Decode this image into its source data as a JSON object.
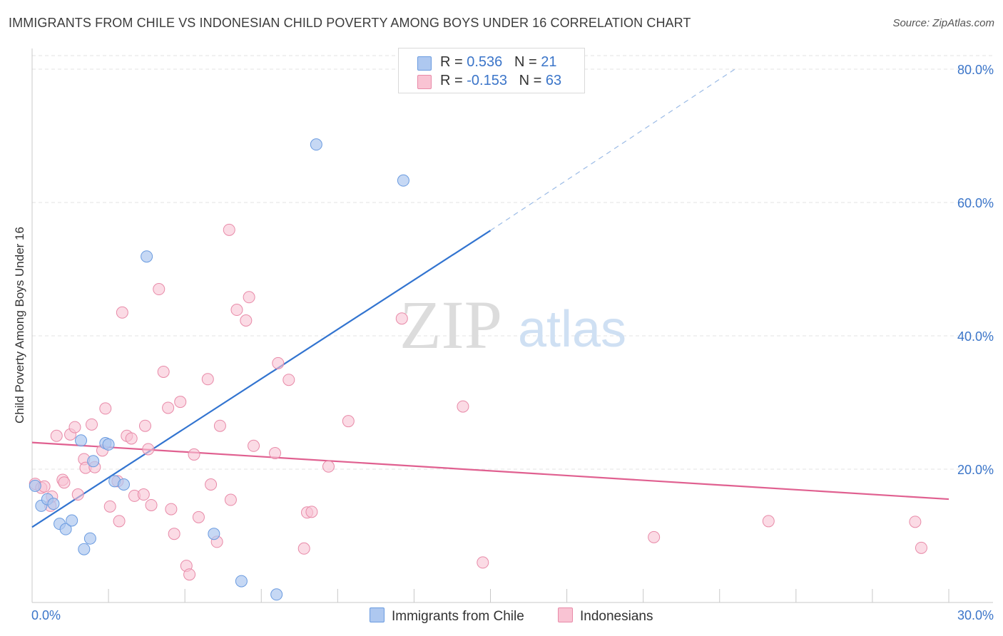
{
  "title": "IMMIGRANTS FROM CHILE VS INDONESIAN CHILD POVERTY AMONG BOYS UNDER 16 CORRELATION CHART",
  "source": "Source: ZipAtlas.com",
  "watermark": {
    "zip": "ZIP",
    "atlas": "atlas"
  },
  "legend_top": {
    "rows": [
      {
        "r_label": "R = ",
        "r_value": "0.536",
        "n_label": "N = ",
        "n_value": "21",
        "color": "#aec8f0",
        "border": "#6a9be0"
      },
      {
        "r_label": "R = ",
        "r_value": "-0.153",
        "n_label": "N = ",
        "n_value": "63",
        "color": "#f9c3d3",
        "border": "#e88aa8"
      }
    ]
  },
  "bottom_legend": {
    "chile": "Immigrants from Chile",
    "indonesians": "Indonesians"
  },
  "chart_data": {
    "type": "scatter",
    "title": "IMMIGRANTS FROM CHILE VS INDONESIAN CHILD POVERTY AMONG BOYS UNDER 16 CORRELATION CHART",
    "xlabel": "",
    "ylabel": "Child Poverty Among Boys Under 16",
    "xlim": [
      0,
      30
    ],
    "ylim": [
      0,
      80
    ],
    "x_tick_labels": [
      "0.0%",
      "30.0%"
    ],
    "y_tick_labels": [
      "20.0%",
      "40.0%",
      "60.0%",
      "80.0%"
    ],
    "y_ticks": [
      20,
      40,
      60,
      80
    ],
    "grid": true,
    "colors": {
      "chile": "#6a9be0",
      "chile_fill": "#aec8f0",
      "indonesians": "#e88aa8",
      "indonesians_fill": "#f9c3d3",
      "chile_line": "#3274d0",
      "indonesians_line": "#e06090"
    },
    "series": [
      {
        "name": "Immigrants from Chile",
        "points": [
          [
            0.1,
            17.5
          ],
          [
            0.3,
            14.5
          ],
          [
            0.5,
            15.5
          ],
          [
            0.7,
            14.8
          ],
          [
            0.9,
            11.8
          ],
          [
            1.1,
            11.0
          ],
          [
            1.3,
            12.3
          ],
          [
            1.6,
            24.3
          ],
          [
            1.7,
            8.0
          ],
          [
            1.9,
            9.6
          ],
          [
            2.0,
            21.2
          ],
          [
            2.4,
            23.9
          ],
          [
            2.5,
            23.7
          ],
          [
            2.7,
            18.2
          ],
          [
            3.0,
            17.7
          ],
          [
            3.75,
            51.9
          ],
          [
            5.95,
            10.3
          ],
          [
            6.85,
            3.2
          ],
          [
            8.0,
            1.2
          ],
          [
            9.3,
            68.7
          ],
          [
            12.15,
            63.3
          ]
        ],
        "trend": {
          "x": [
            0,
            15
          ],
          "y": [
            11.3,
            55.8
          ],
          "dashed_to": [
            23,
            80
          ]
        }
      },
      {
        "name": "Indonesians",
        "points": [
          [
            0.1,
            17.8
          ],
          [
            0.3,
            17.2
          ],
          [
            0.4,
            17.4
          ],
          [
            0.6,
            14.5
          ],
          [
            0.65,
            15.9
          ],
          [
            0.8,
            25.0
          ],
          [
            1.0,
            18.4
          ],
          [
            1.05,
            18.0
          ],
          [
            1.25,
            25.2
          ],
          [
            1.4,
            26.3
          ],
          [
            1.5,
            16.2
          ],
          [
            1.7,
            21.5
          ],
          [
            1.75,
            20.2
          ],
          [
            1.95,
            26.7
          ],
          [
            2.05,
            20.3
          ],
          [
            2.3,
            22.8
          ],
          [
            2.4,
            29.1
          ],
          [
            2.55,
            14.4
          ],
          [
            2.8,
            18.2
          ],
          [
            2.85,
            12.2
          ],
          [
            2.95,
            43.5
          ],
          [
            3.1,
            25.0
          ],
          [
            3.25,
            24.6
          ],
          [
            3.35,
            16.0
          ],
          [
            3.65,
            16.2
          ],
          [
            3.7,
            26.5
          ],
          [
            3.8,
            23.0
          ],
          [
            3.9,
            14.6
          ],
          [
            4.15,
            47.0
          ],
          [
            4.3,
            34.6
          ],
          [
            4.45,
            29.2
          ],
          [
            4.55,
            14.0
          ],
          [
            4.65,
            10.3
          ],
          [
            4.85,
            30.1
          ],
          [
            5.05,
            5.5
          ],
          [
            5.15,
            4.2
          ],
          [
            5.3,
            22.2
          ],
          [
            5.45,
            12.8
          ],
          [
            5.75,
            33.5
          ],
          [
            5.85,
            17.7
          ],
          [
            6.05,
            9.1
          ],
          [
            6.15,
            26.5
          ],
          [
            6.45,
            55.9
          ],
          [
            6.5,
            15.4
          ],
          [
            6.7,
            43.9
          ],
          [
            7.0,
            42.3
          ],
          [
            7.1,
            45.8
          ],
          [
            7.25,
            23.5
          ],
          [
            7.95,
            22.4
          ],
          [
            8.05,
            35.9
          ],
          [
            8.4,
            33.4
          ],
          [
            8.9,
            8.1
          ],
          [
            9.0,
            13.5
          ],
          [
            9.15,
            13.6
          ],
          [
            9.7,
            20.4
          ],
          [
            10.35,
            27.2
          ],
          [
            12.1,
            42.6
          ],
          [
            14.1,
            29.4
          ],
          [
            14.75,
            6.0
          ],
          [
            20.35,
            9.8
          ],
          [
            24.1,
            12.2
          ],
          [
            28.9,
            12.1
          ],
          [
            29.1,
            8.2
          ]
        ],
        "trend": {
          "x": [
            0,
            30
          ],
          "y": [
            24.0,
            15.5
          ]
        }
      }
    ]
  }
}
